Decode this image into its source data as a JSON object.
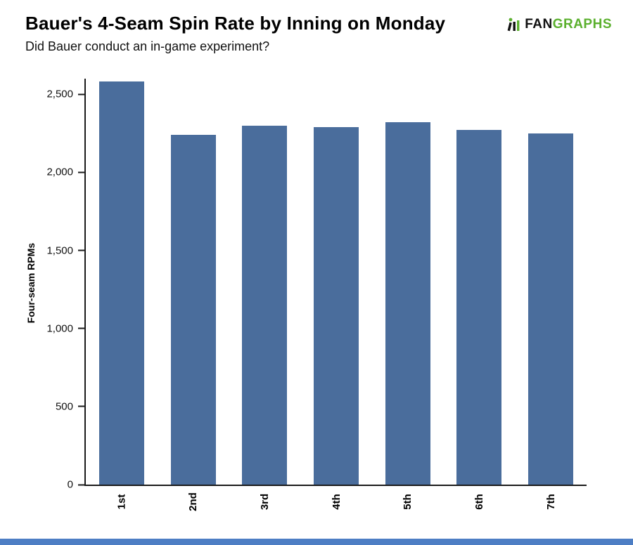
{
  "header": {
    "title": "Bauer's 4-Seam Spin Rate by Inning on Monday",
    "subtitle": "Did Bauer conduct an in-game experiment?"
  },
  "logo": {
    "fan": "FAN",
    "graphs": "GRAPHS"
  },
  "colors": {
    "bar": "#4a6d9c",
    "logo_green": "#5bb02e",
    "logo_black": "#111111",
    "footer_strip": "#4d7ec4",
    "axis": "#1a1a1a"
  },
  "chart_data": {
    "type": "bar",
    "categories": [
      "1st",
      "2nd",
      "3rd",
      "4th",
      "5th",
      "6th",
      "7th"
    ],
    "values": [
      2580,
      2240,
      2300,
      2290,
      2320,
      2270,
      2250
    ],
    "title": "Bauer's 4-Seam Spin Rate by Inning on Monday",
    "subtitle": "Did Bauer conduct an in-game experiment?",
    "xlabel": "",
    "ylabel": "Four-seam RPMs",
    "ylim": [
      0,
      2600
    ],
    "yticks": [
      0,
      500,
      1000,
      1500,
      2000,
      2500
    ],
    "grid": false,
    "legend": "none",
    "bar_color": "#4a6d9c"
  }
}
